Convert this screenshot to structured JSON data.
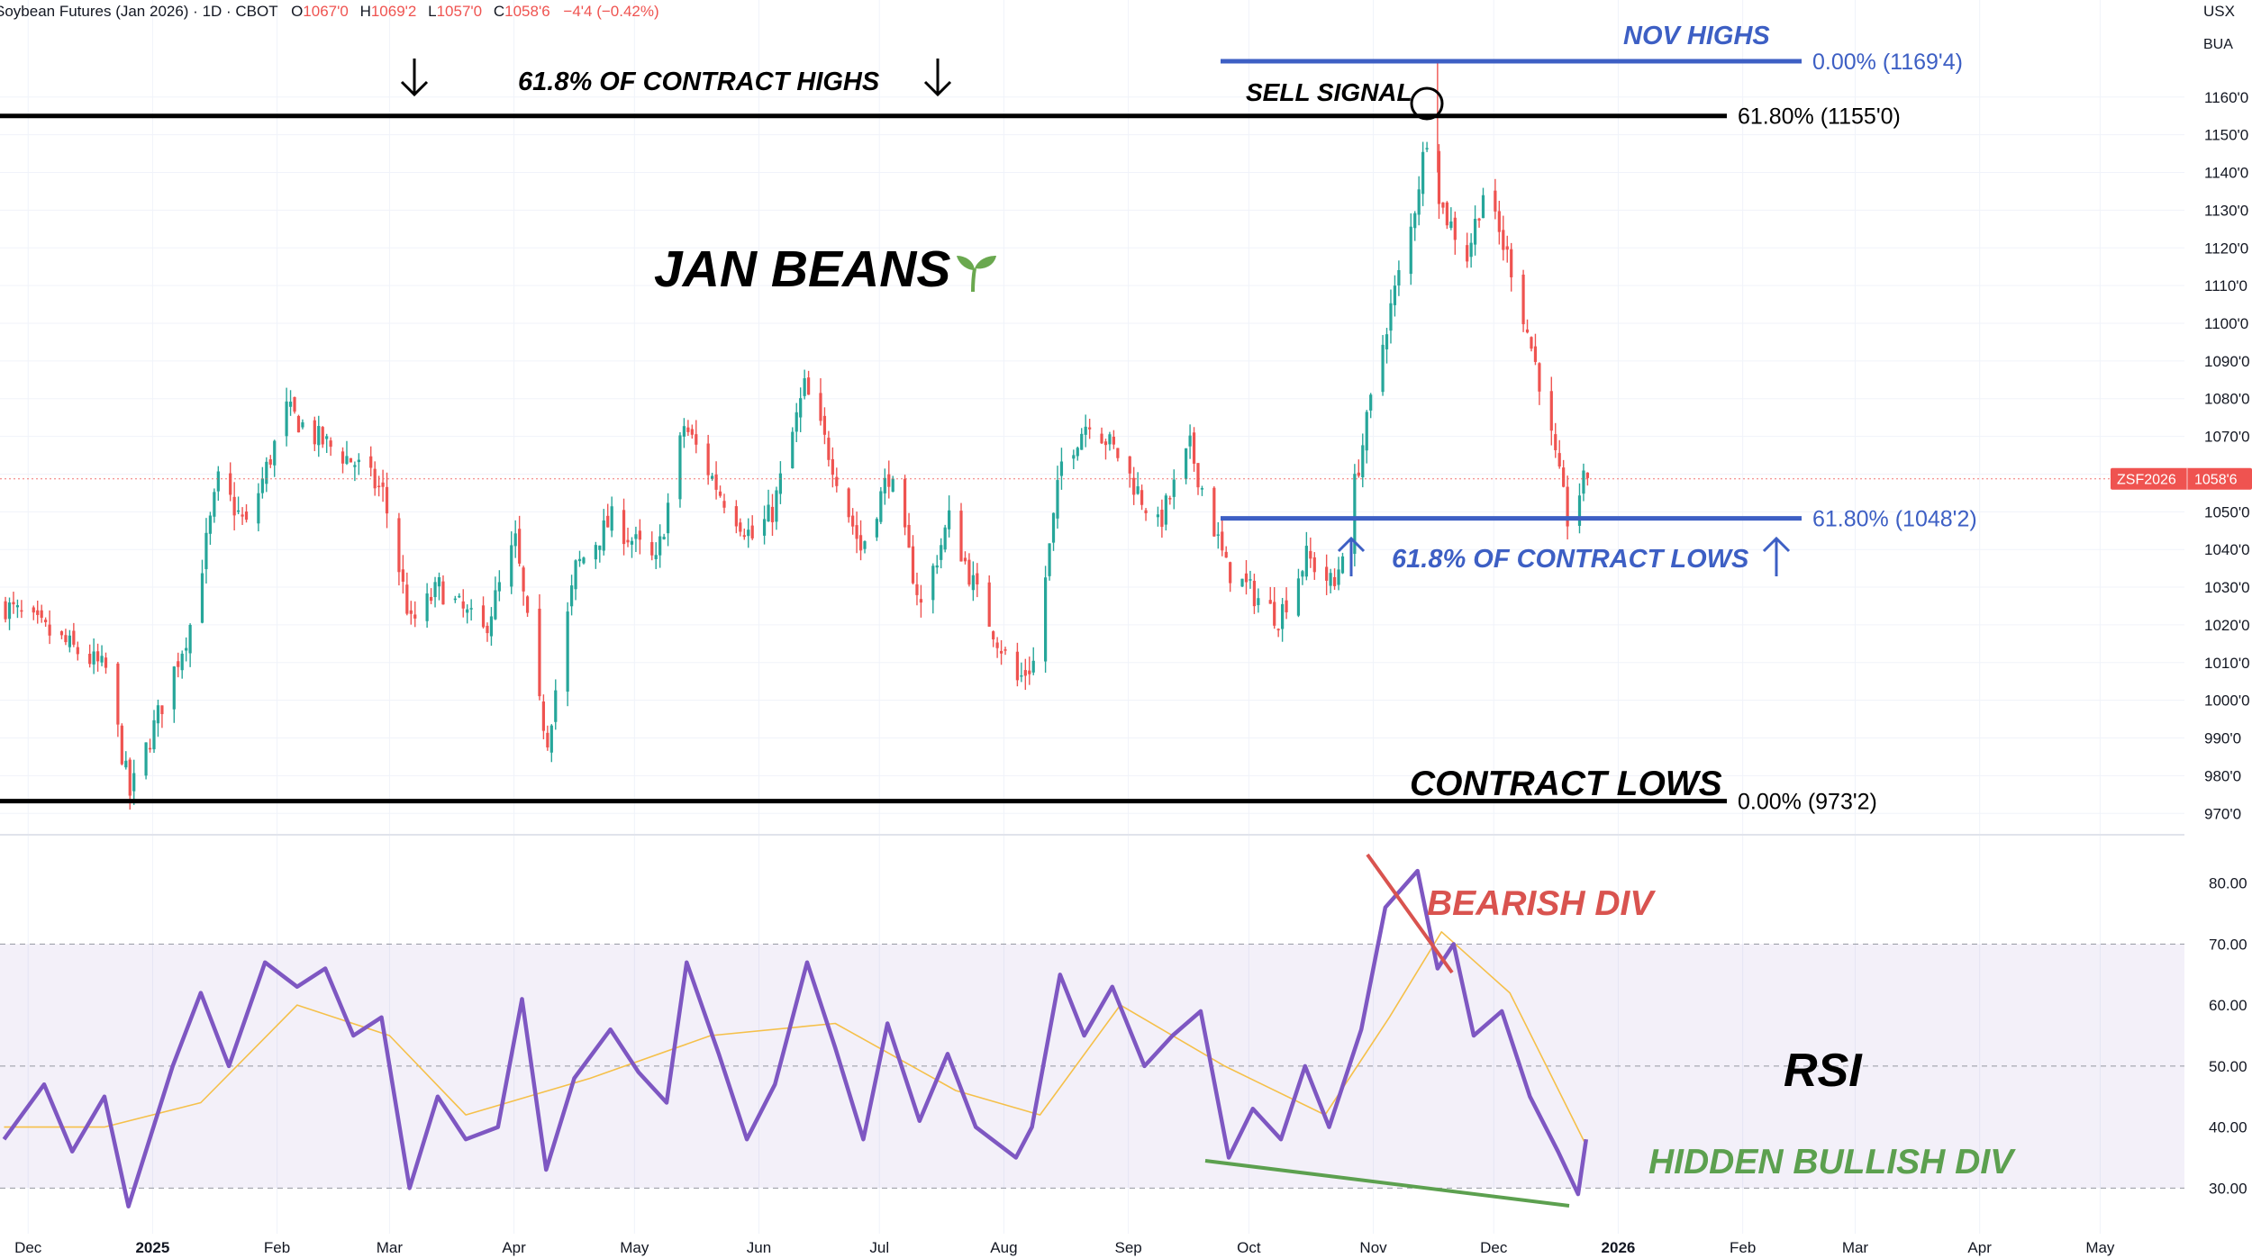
{
  "header": {
    "symbol_text": "Soybean Futures (Jan 2026) · 1D · CBOT",
    "open_label": "O",
    "open": "1067'0",
    "high_label": "H",
    "high": "1069'2",
    "low_label": "L",
    "low": "1057'0",
    "close_label": "C",
    "close": "1058'6",
    "change": "−4'4 (−0.42%)"
  },
  "corner": {
    "currency": "USX",
    "unit": "BUA"
  },
  "price_tag": {
    "symbol": "ZSF2026",
    "value": "1058'6",
    "price": 1058.75
  },
  "annotations": {
    "contract_highs_618": "61.8% OF CONTRACT HIGHS",
    "sell_signal": "SELL SIGNAL",
    "nov_highs": "NOV HIGHS",
    "title": "JAN BEANS",
    "contract_lows_618": "61.8% OF CONTRACT LOWS",
    "contract_lows": "CONTRACT LOWS",
    "bearish_div": "BEARISH DIV",
    "rsi": "RSI",
    "hidden_bullish_div": "HIDDEN BULLISH DIV"
  },
  "fib_levels": [
    {
      "name": "nov-highs",
      "label": "0.00% (1169'4)",
      "price": 1169.5,
      "color": "#3d5fc4"
    },
    {
      "name": "contract-highs-618",
      "label": "61.80% (1155'0)",
      "price": 1155.0,
      "color": "#000000"
    },
    {
      "name": "contract-lows-618",
      "label": "61.80% (1048'2)",
      "price": 1048.25,
      "color": "#3d5fc4"
    },
    {
      "name": "contract-lows",
      "label": "0.00% (973'2)",
      "price": 973.25,
      "color": "#000000"
    }
  ],
  "colors": {
    "up": "#26a69a",
    "down": "#ef5350",
    "rsi": "#7e57c2",
    "rsi_ma": "#f5c04a",
    "blue": "#3d5fc4",
    "bearish": "#d9534f",
    "bullish": "#5ca04f"
  },
  "chart_data": [
    {
      "type": "candlestick",
      "title": "Soybean Futures (Jan 2026)",
      "y_tick_labels": [
        "970'0",
        "980'0",
        "990'0",
        "1000'0",
        "1010'0",
        "1020'0",
        "1030'0",
        "1040'0",
        "1050'0",
        "1060'0",
        "1070'0",
        "1080'0",
        "1090'0",
        "1100'0",
        "1110'0",
        "1120'0",
        "1130'0",
        "1140'0",
        "1150'0",
        "1160'0"
      ],
      "y_ticks": [
        970,
        980,
        990,
        1000,
        1010,
        1020,
        1030,
        1040,
        1050,
        1060,
        1070,
        1080,
        1090,
        1100,
        1110,
        1120,
        1130,
        1140,
        1150,
        1160
      ],
      "ylim": [
        966,
        1175
      ],
      "x_tick_labels": [
        "Dec",
        "2025",
        "Feb",
        "Mar",
        "Apr",
        "May",
        "Jun",
        "Jul",
        "Aug",
        "Sep",
        "Oct",
        "Nov",
        "Dec",
        "2026",
        "Feb",
        "Mar",
        "Apr",
        "May"
      ],
      "x_ticks": [
        "2024-12-01",
        "2025-01-01",
        "2025-02-01",
        "2025-03-01",
        "2025-04-01",
        "2025-05-01",
        "2025-06-01",
        "2025-07-01",
        "2025-08-01",
        "2025-09-01",
        "2025-10-01",
        "2025-11-01",
        "2025-12-01",
        "2026-01-01",
        "2026-02-01",
        "2026-03-01",
        "2026-04-01",
        "2026-05-01"
      ],
      "xlim": [
        "2024-11-24",
        "2026-05-22"
      ],
      "key_points": [
        {
          "date": "2024-11-25",
          "close": 1025
        },
        {
          "date": "2024-12-10",
          "close": 1015
        },
        {
          "date": "2024-12-20",
          "close": 1008
        },
        {
          "date": "2024-12-26",
          "close": 975
        },
        {
          "date": "2025-01-10",
          "close": 1020
        },
        {
          "date": "2025-01-17",
          "close": 1058
        },
        {
          "date": "2025-01-24",
          "close": 1046
        },
        {
          "date": "2025-02-03",
          "close": 1077
        },
        {
          "date": "2025-02-10",
          "close": 1070
        },
        {
          "date": "2025-02-20",
          "close": 1063
        },
        {
          "date": "2025-02-27",
          "close": 1055
        },
        {
          "date": "2025-03-06",
          "close": 1020
        },
        {
          "date": "2025-03-13",
          "close": 1030
        },
        {
          "date": "2025-03-24",
          "close": 1018
        },
        {
          "date": "2025-04-01",
          "close": 1042
        },
        {
          "date": "2025-04-07",
          "close": 998
        },
        {
          "date": "2025-04-09",
          "close": 990
        },
        {
          "date": "2025-04-16",
          "close": 1035
        },
        {
          "date": "2025-04-25",
          "close": 1048
        },
        {
          "date": "2025-05-06",
          "close": 1036
        },
        {
          "date": "2025-05-13",
          "close": 1073
        },
        {
          "date": "2025-05-22",
          "close": 1055
        },
        {
          "date": "2025-05-30",
          "close": 1043
        },
        {
          "date": "2025-06-04",
          "close": 1050
        },
        {
          "date": "2025-06-12",
          "close": 1083
        },
        {
          "date": "2025-06-19",
          "close": 1063
        },
        {
          "date": "2025-06-26",
          "close": 1040
        },
        {
          "date": "2025-07-03",
          "close": 1060
        },
        {
          "date": "2025-07-11",
          "close": 1025
        },
        {
          "date": "2025-07-18",
          "close": 1048
        },
        {
          "date": "2025-07-25",
          "close": 1028
        },
        {
          "date": "2025-08-04",
          "close": 1005
        },
        {
          "date": "2025-08-08",
          "close": 1010
        },
        {
          "date": "2025-08-15",
          "close": 1063
        },
        {
          "date": "2025-08-22",
          "close": 1075
        },
        {
          "date": "2025-08-29",
          "close": 1065
        },
        {
          "date": "2025-09-08",
          "close": 1046
        },
        {
          "date": "2025-09-16",
          "close": 1067
        },
        {
          "date": "2025-09-25",
          "close": 1035
        },
        {
          "date": "2025-10-02",
          "close": 1028
        },
        {
          "date": "2025-10-08",
          "close": 1022
        },
        {
          "date": "2025-10-15",
          "close": 1038
        },
        {
          "date": "2025-10-22",
          "close": 1030
        },
        {
          "date": "2025-10-29",
          "close": 1068
        },
        {
          "date": "2025-11-04",
          "close": 1100
        },
        {
          "date": "2025-11-10",
          "close": 1125
        },
        {
          "date": "2025-11-14",
          "close": 1150
        },
        {
          "date": "2025-11-18",
          "close": 1130
        },
        {
          "date": "2025-11-24",
          "close": 1118
        },
        {
          "date": "2025-11-28",
          "close": 1135
        },
        {
          "date": "2025-12-05",
          "close": 1115
        },
        {
          "date": "2025-12-12",
          "close": 1085
        },
        {
          "date": "2025-12-19",
          "close": 1048
        },
        {
          "date": "2025-12-24",
          "close": 1060
        }
      ]
    },
    {
      "type": "line",
      "title": "RSI",
      "y_tick_labels": [
        "30.00",
        "40.00",
        "50.00",
        "60.00",
        "70.00",
        "80.00"
      ],
      "y_ticks": [
        30,
        40,
        50,
        60,
        70,
        80
      ],
      "ylim": [
        24,
        86
      ],
      "band": [
        30,
        70
      ],
      "series": [
        {
          "points": [
            {
              "date": "2024-11-25",
              "value": 38
            },
            {
              "date": "2024-12-05",
              "value": 47
            },
            {
              "date": "2024-12-12",
              "value": 36
            },
            {
              "date": "2024-12-20",
              "value": 45
            },
            {
              "date": "2024-12-26",
              "value": 27
            },
            {
              "date": "2025-01-06",
              "value": 50
            },
            {
              "date": "2025-01-13",
              "value": 62
            },
            {
              "date": "2025-01-20",
              "value": 50
            },
            {
              "date": "2025-01-29",
              "value": 67
            },
            {
              "date": "2025-02-06",
              "value": 63
            },
            {
              "date": "2025-02-13",
              "value": 66
            },
            {
              "date": "2025-02-20",
              "value": 55
            },
            {
              "date": "2025-02-27",
              "value": 58
            },
            {
              "date": "2025-03-06",
              "value": 30
            },
            {
              "date": "2025-03-13",
              "value": 45
            },
            {
              "date": "2025-03-20",
              "value": 38
            },
            {
              "date": "2025-03-28",
              "value": 40
            },
            {
              "date": "2025-04-03",
              "value": 61
            },
            {
              "date": "2025-04-09",
              "value": 33
            },
            {
              "date": "2025-04-16",
              "value": 48
            },
            {
              "date": "2025-04-25",
              "value": 56
            },
            {
              "date": "2025-05-02",
              "value": 49
            },
            {
              "date": "2025-05-09",
              "value": 44
            },
            {
              "date": "2025-05-14",
              "value": 67
            },
            {
              "date": "2025-05-22",
              "value": 52
            },
            {
              "date": "2025-05-29",
              "value": 38
            },
            {
              "date": "2025-06-05",
              "value": 47
            },
            {
              "date": "2025-06-13",
              "value": 67
            },
            {
              "date": "2025-06-20",
              "value": 53
            },
            {
              "date": "2025-06-27",
              "value": 38
            },
            {
              "date": "2025-07-03",
              "value": 57
            },
            {
              "date": "2025-07-11",
              "value": 41
            },
            {
              "date": "2025-07-18",
              "value": 52
            },
            {
              "date": "2025-07-25",
              "value": 40
            },
            {
              "date": "2025-08-04",
              "value": 35
            },
            {
              "date": "2025-08-08",
              "value": 40
            },
            {
              "date": "2025-08-15",
              "value": 65
            },
            {
              "date": "2025-08-21",
              "value": 55
            },
            {
              "date": "2025-08-28",
              "value": 63
            },
            {
              "date": "2025-09-05",
              "value": 50
            },
            {
              "date": "2025-09-12",
              "value": 55
            },
            {
              "date": "2025-09-19",
              "value": 59
            },
            {
              "date": "2025-09-26",
              "value": 35
            },
            {
              "date": "2025-10-02",
              "value": 43
            },
            {
              "date": "2025-10-09",
              "value": 38
            },
            {
              "date": "2025-10-15",
              "value": 50
            },
            {
              "date": "2025-10-21",
              "value": 40
            },
            {
              "date": "2025-10-29",
              "value": 56
            },
            {
              "date": "2025-11-04",
              "value": 76
            },
            {
              "date": "2025-11-12",
              "value": 82
            },
            {
              "date": "2025-11-17",
              "value": 66
            },
            {
              "date": "2025-11-21",
              "value": 70
            },
            {
              "date": "2025-11-26",
              "value": 55
            },
            {
              "date": "2025-12-03",
              "value": 59
            },
            {
              "date": "2025-12-10",
              "value": 45
            },
            {
              "date": "2025-12-17",
              "value": 36
            },
            {
              "date": "2025-12-22",
              "value": 29
            },
            {
              "date": "2025-12-24",
              "value": 38
            }
          ]
        },
        {
          "points": [
            {
              "date": "2024-11-25",
              "value": 40
            },
            {
              "date": "2024-12-20",
              "value": 40
            },
            {
              "date": "2025-01-13",
              "value": 44
            },
            {
              "date": "2025-02-06",
              "value": 60
            },
            {
              "date": "2025-03-01",
              "value": 55
            },
            {
              "date": "2025-03-20",
              "value": 42
            },
            {
              "date": "2025-04-20",
              "value": 48
            },
            {
              "date": "2025-05-20",
              "value": 55
            },
            {
              "date": "2025-06-20",
              "value": 57
            },
            {
              "date": "2025-07-20",
              "value": 46
            },
            {
              "date": "2025-08-10",
              "value": 42
            },
            {
              "date": "2025-08-30",
              "value": 60
            },
            {
              "date": "2025-09-25",
              "value": 50
            },
            {
              "date": "2025-10-20",
              "value": 42
            },
            {
              "date": "2025-11-05",
              "value": 58
            },
            {
              "date": "2025-11-18",
              "value": 72
            },
            {
              "date": "2025-12-05",
              "value": 62
            },
            {
              "date": "2025-12-24",
              "value": 37
            }
          ]
        }
      ]
    }
  ]
}
